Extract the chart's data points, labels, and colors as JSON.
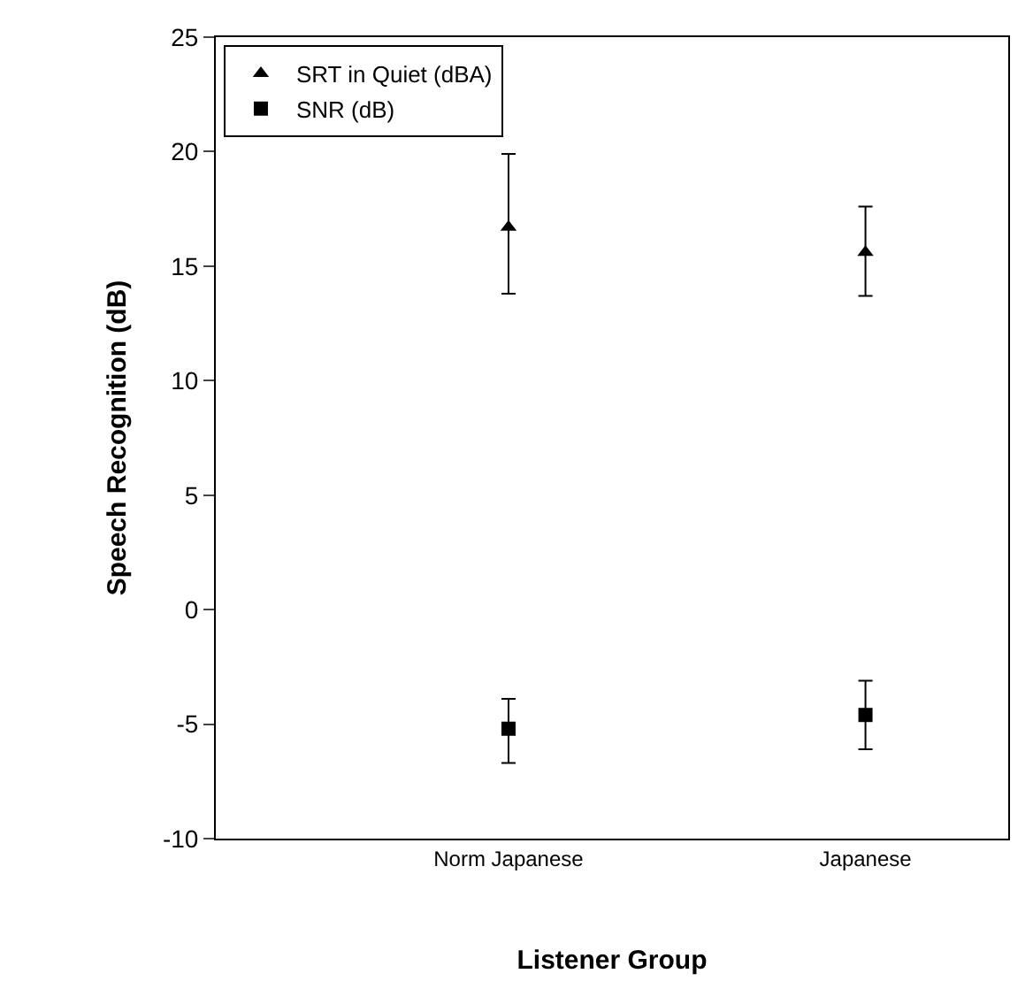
{
  "chart_data": {
    "type": "scatter",
    "xlabel": "Listener Group",
    "ylabel": "Speech Recognition (dB)",
    "categories": [
      "Norm Japanese",
      "Japanese"
    ],
    "series": [
      {
        "name": "SRT in Quiet (dBA)",
        "color": "#000000",
        "marker": "triangle",
        "values": [
          16.7,
          15.6
        ],
        "errors": [
          [
            13.8,
            19.9
          ],
          [
            13.7,
            17.6
          ]
        ]
      },
      {
        "name": "SNR (dB)",
        "color": "#000000",
        "marker": "square",
        "values": [
          -5.2,
          -4.6
        ],
        "errors": [
          [
            -6.7,
            -3.9
          ],
          [
            -6.1,
            -3.1
          ]
        ]
      }
    ],
    "ylim": [
      -10,
      25
    ],
    "yticks": [
      -10,
      -5,
      0,
      5,
      10,
      15,
      20,
      25
    ],
    "grid": false,
    "legend": "top left"
  }
}
